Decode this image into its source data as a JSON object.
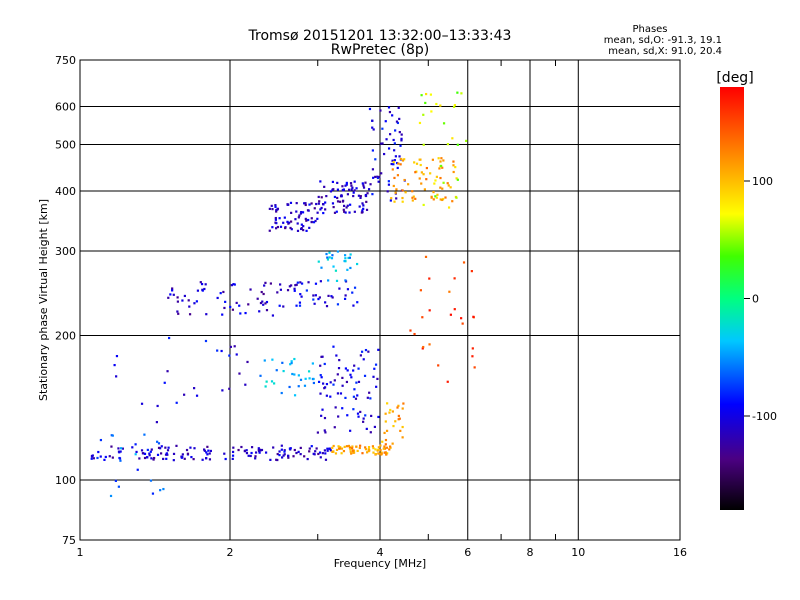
{
  "chart_data": {
    "type": "scatter",
    "title": "Tromsø 20151201 13:32:00–13:33:43",
    "subtitle": "RwPretec (8p)",
    "xlabel": "Frequency [MHz]",
    "ylabel": "Stationary phase Virtual Height [km]",
    "x_scale": "log",
    "y_scale": "log",
    "xlim": [
      1,
      16
    ],
    "ylim": [
      75,
      750
    ],
    "x_ticks": [
      1,
      2,
      4,
      6,
      8,
      10,
      16
    ],
    "x_tick_labels": [
      "1",
      "2",
      "4",
      "6",
      "8",
      "10",
      "16"
    ],
    "x_minor_ticks": [
      3,
      5,
      7,
      9
    ],
    "y_ticks": [
      75,
      100,
      200,
      300,
      400,
      500,
      600,
      750
    ],
    "y_tick_labels": [
      "75",
      "100",
      "200",
      "300",
      "400",
      "500",
      "600",
      "750"
    ],
    "grid": true,
    "phases": {
      "title": "Phases",
      "line_o": "mean, sd,O: -91.3, 19.1",
      "line_x": "mean, sd,X:  91.0, 20.4"
    },
    "colorbar": {
      "label": "[deg]",
      "ticks": [
        100,
        0,
        -100
      ],
      "tick_labels": [
        "100",
        "0",
        "-100"
      ],
      "range": [
        -180,
        180
      ]
    },
    "traces": [
      {
        "x_range": [
          1.05,
          3.2
        ],
        "y_range": [
          110,
          118
        ],
        "phase": -110,
        "count": 150
      },
      {
        "x_range": [
          3.2,
          4.2
        ],
        "y_range": [
          113,
          118
        ],
        "phase": 110,
        "count": 70
      },
      {
        "x_range": [
          4.0,
          4.5
        ],
        "y_range": [
          118,
          150
        ],
        "phase": 110,
        "count": 25
      },
      {
        "x_range": [
          3.0,
          4.0
        ],
        "y_range": [
          125,
          190
        ],
        "phase": -100,
        "count": 80
      },
      {
        "x_range": [
          2.3,
          3.0
        ],
        "y_range": [
          150,
          180
        ],
        "phase": -40,
        "count": 30
      },
      {
        "x_range": [
          1.5,
          2.6
        ],
        "y_range": [
          220,
          260
        ],
        "phase": -110,
        "count": 60
      },
      {
        "x_range": [
          2.6,
          3.6
        ],
        "y_range": [
          230,
          260
        ],
        "phase": -100,
        "count": 40
      },
      {
        "x_range": [
          3.0,
          3.6
        ],
        "y_range": [
          260,
          300
        ],
        "phase": -40,
        "count": 25
      },
      {
        "x_range": [
          2.4,
          3.0
        ],
        "y_range": [
          330,
          380
        ],
        "phase": -110,
        "count": 70
      },
      {
        "x_range": [
          3.0,
          3.8
        ],
        "y_range": [
          360,
          420
        ],
        "phase": -110,
        "count": 80
      },
      {
        "x_range": [
          3.8,
          4.5
        ],
        "y_range": [
          380,
          600
        ],
        "phase": -100,
        "count": 60
      },
      {
        "x_range": [
          4.2,
          5.7
        ],
        "y_range": [
          380,
          470
        ],
        "phase": 110,
        "count": 70
      },
      {
        "x_range": [
          4.8,
          6.0
        ],
        "y_range": [
          360,
          650
        ],
        "phase": 60,
        "count": 30
      },
      {
        "x_range": [
          4.5,
          6.2
        ],
        "y_range": [
          160,
          300
        ],
        "phase": 150,
        "count": 25
      },
      {
        "x_range": [
          1.05,
          1.5
        ],
        "y_range": [
          90,
          125
        ],
        "phase": -60,
        "count": 20
      },
      {
        "x_range": [
          1.1,
          2.2
        ],
        "y_range": [
          120,
          200
        ],
        "phase": -100,
        "count": 25
      }
    ]
  }
}
